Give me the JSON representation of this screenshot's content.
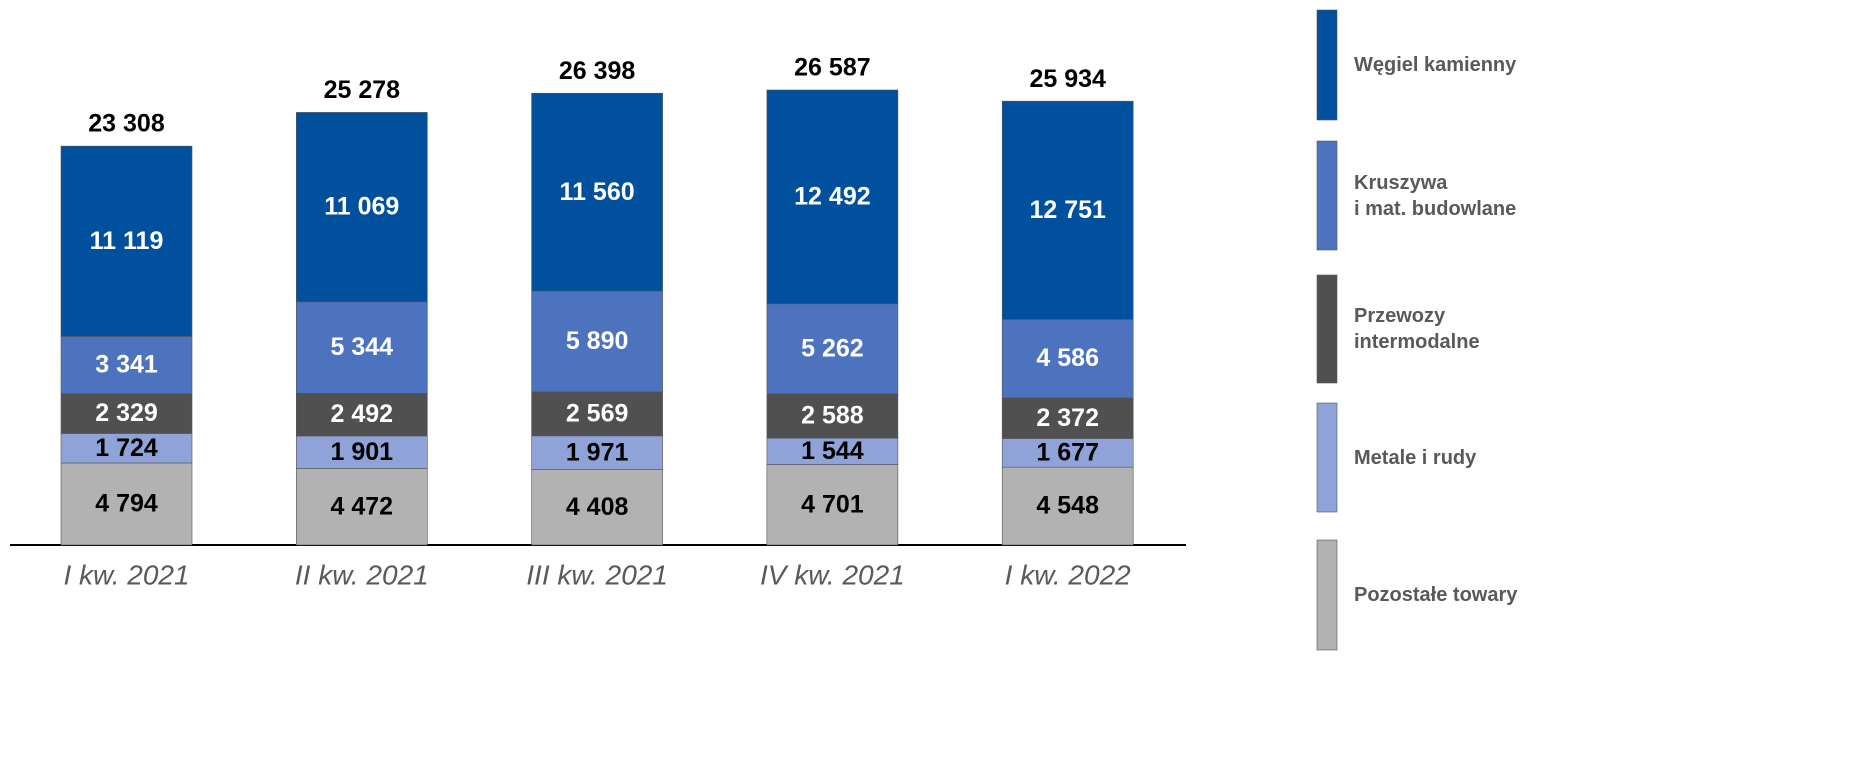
{
  "chart_data": {
    "type": "stacked_bar",
    "categories": [
      "I kw. 2021",
      "II kw. 2021",
      "III kw. 2021",
      "IV kw. 2021",
      "I kw. 2022"
    ],
    "series": [
      {
        "name": "Węgiel kamienny",
        "color": "#00509e",
        "values": [
          11119,
          11069,
          11560,
          12492,
          12751
        ],
        "value_labels": [
          "11 119",
          "11 069",
          "11 560",
          "12 492",
          "12 751"
        ]
      },
      {
        "name": "Kruszywa\ni mat. budowlane",
        "color": "#4e73be",
        "values": [
          3341,
          5344,
          5890,
          5262,
          4586
        ],
        "value_labels": [
          "3 341",
          "5 344",
          "5 890",
          "5 262",
          "4 586"
        ]
      },
      {
        "name": "Przewozy\nintermodalne",
        "color": "#505050",
        "values": [
          2329,
          2492,
          2569,
          2588,
          2372
        ],
        "value_labels": [
          "2 329",
          "2 492",
          "2 569",
          "2 588",
          "2 372"
        ]
      },
      {
        "name": "Metale i rudy",
        "color": "#8fa3d8",
        "values": [
          1724,
          1901,
          1971,
          1544,
          1677
        ],
        "value_labels": [
          "1 724",
          "1 901",
          "1 971",
          "1 544",
          "1 677"
        ]
      },
      {
        "name": "Pozostałe towary",
        "color": "#b2b2b2",
        "values": [
          4794,
          4472,
          4408,
          4701,
          4548
        ],
        "value_labels": [
          "4 794",
          "4 472",
          "4 408",
          "4 701",
          "4 548"
        ]
      }
    ],
    "totals": {
      "values": [
        23308,
        25278,
        26398,
        26587,
        25934
      ],
      "value_labels": [
        "23 308",
        "25 278",
        "26 398",
        "26 587",
        "25 934"
      ]
    }
  }
}
